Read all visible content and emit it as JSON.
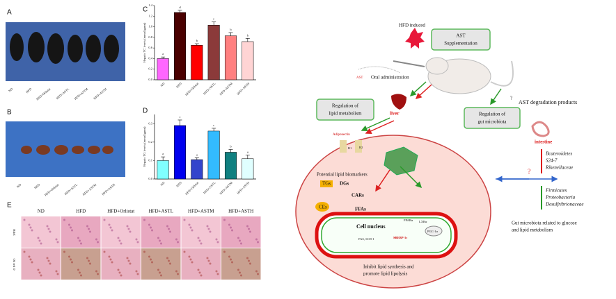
{
  "chart_data": [
    {
      "type": "bar",
      "panel": "C",
      "ylabel": "Hepatic TC levels (mmol/gprot)",
      "categories": [
        "ND",
        "HFD",
        "HFD+Orlistat",
        "HFD+ASTL",
        "HFD+ASTM",
        "HFD+ASTH"
      ],
      "values": [
        0.4,
        1.27,
        0.65,
        1.03,
        0.83,
        0.72
      ],
      "errors": [
        0.03,
        0.04,
        0.03,
        0.06,
        0.06,
        0.06
      ],
      "annotations": [
        "a",
        "d",
        "b",
        "c",
        "b",
        "b"
      ],
      "colors": [
        "#ff66ff",
        "#4a0000",
        "#ff0000",
        "#8b3a3a",
        "#ff8080",
        "#ffd4d4"
      ],
      "ylim": [
        0,
        1.4
      ],
      "yticks": [
        {
          "value": 0,
          "label": "0.0"
        },
        0.2,
        0.4,
        0.6,
        0.8,
        {
          "value": 1,
          "label": "1.0"
        },
        1.2,
        1.4
      ]
    },
    {
      "type": "bar",
      "panel": "D",
      "ylabel": "Hepatic TG levels (mmol/gprot)",
      "categories": [
        "ND",
        "HFD",
        "HFD+Orlistat",
        "HFD+ASTL",
        "HFD+ASTM",
        "HFD+ASTH"
      ],
      "values": [
        0.1,
        0.29,
        0.105,
        0.26,
        0.145,
        0.11
      ],
      "errors": [
        0.02,
        0.03,
        0.01,
        0.015,
        0.015,
        0.02
      ],
      "annotations": [
        "a",
        "c",
        "a",
        "c",
        "b",
        "a"
      ],
      "colors": [
        "#80ffff",
        "#0000ee",
        "#3344cc",
        "#33bbff",
        "#108080",
        "#e0ffff"
      ],
      "ylim": [
        0,
        0.35
      ],
      "yticks": [
        {
          "value": 0,
          "label": "0.0"
        },
        0.1,
        0.2,
        0.3
      ]
    }
  ],
  "figure": {
    "panel_a": {
      "label": "A",
      "groups": [
        "ND",
        "HFD",
        "HFD+Orlistat",
        "HFD+ASTL",
        "HFD+ASTM",
        "HFD+ASTH"
      ]
    },
    "panel_b": {
      "label": "B",
      "groups": [
        "ND",
        "HFD",
        "HFD+Orlistat",
        "HFD+ASTL",
        "HFD+ASTM",
        "HFD+ASTH"
      ]
    },
    "panel_e": {
      "label": "E",
      "columns": [
        "ND",
        "HFD",
        "HFD+Orlistat",
        "HFD+ASTL",
        "HFD+ASTM",
        "HFD+ASTH"
      ],
      "rows": [
        "H&E",
        "Oil red O"
      ]
    },
    "diagram": {
      "hfd_induced": "HFD induced",
      "ast_supp": [
        "AST",
        "Supplementation"
      ],
      "oral": "Oral administration",
      "ast": "AST",
      "liver": "liver",
      "reg_lipid": [
        "Regulation of",
        "lipid metabolism"
      ],
      "reg_gut": [
        "Regulation of",
        "gut microbiota"
      ],
      "q1": "?",
      "degradation": "AST degradation products",
      "intestine": "intestine",
      "adiponectin": "Adiponectin",
      "r1": "R1",
      "r2": "R2",
      "biomarkers": "Potential lipid biomarkers",
      "tgs": "TGs",
      "dgs": "DGs",
      "cars": "CARs",
      "ffas": "FFAs",
      "ces": "CEs",
      "nucleus": "Cell nucleus",
      "fas": "FAS, SCD-1",
      "srebp": "SREBP-1c",
      "ppara": "PPARα",
      "lxra": "LXRα",
      "pgc": "PGC-1α",
      "inhibit": [
        "Inhibit lipid synthesis and",
        "promote lipid lipolysis"
      ],
      "q2": "?",
      "up_taxa": [
        "Bcateroidetes",
        "S24-7",
        "Rikenellaceae"
      ],
      "down_taxa": [
        "Firmicutes",
        "Proteobacteria",
        "Desulfribrionaceae"
      ],
      "gut_note": [
        "Gut microbiota related to glucose",
        "and lipid metabolism"
      ]
    }
  }
}
